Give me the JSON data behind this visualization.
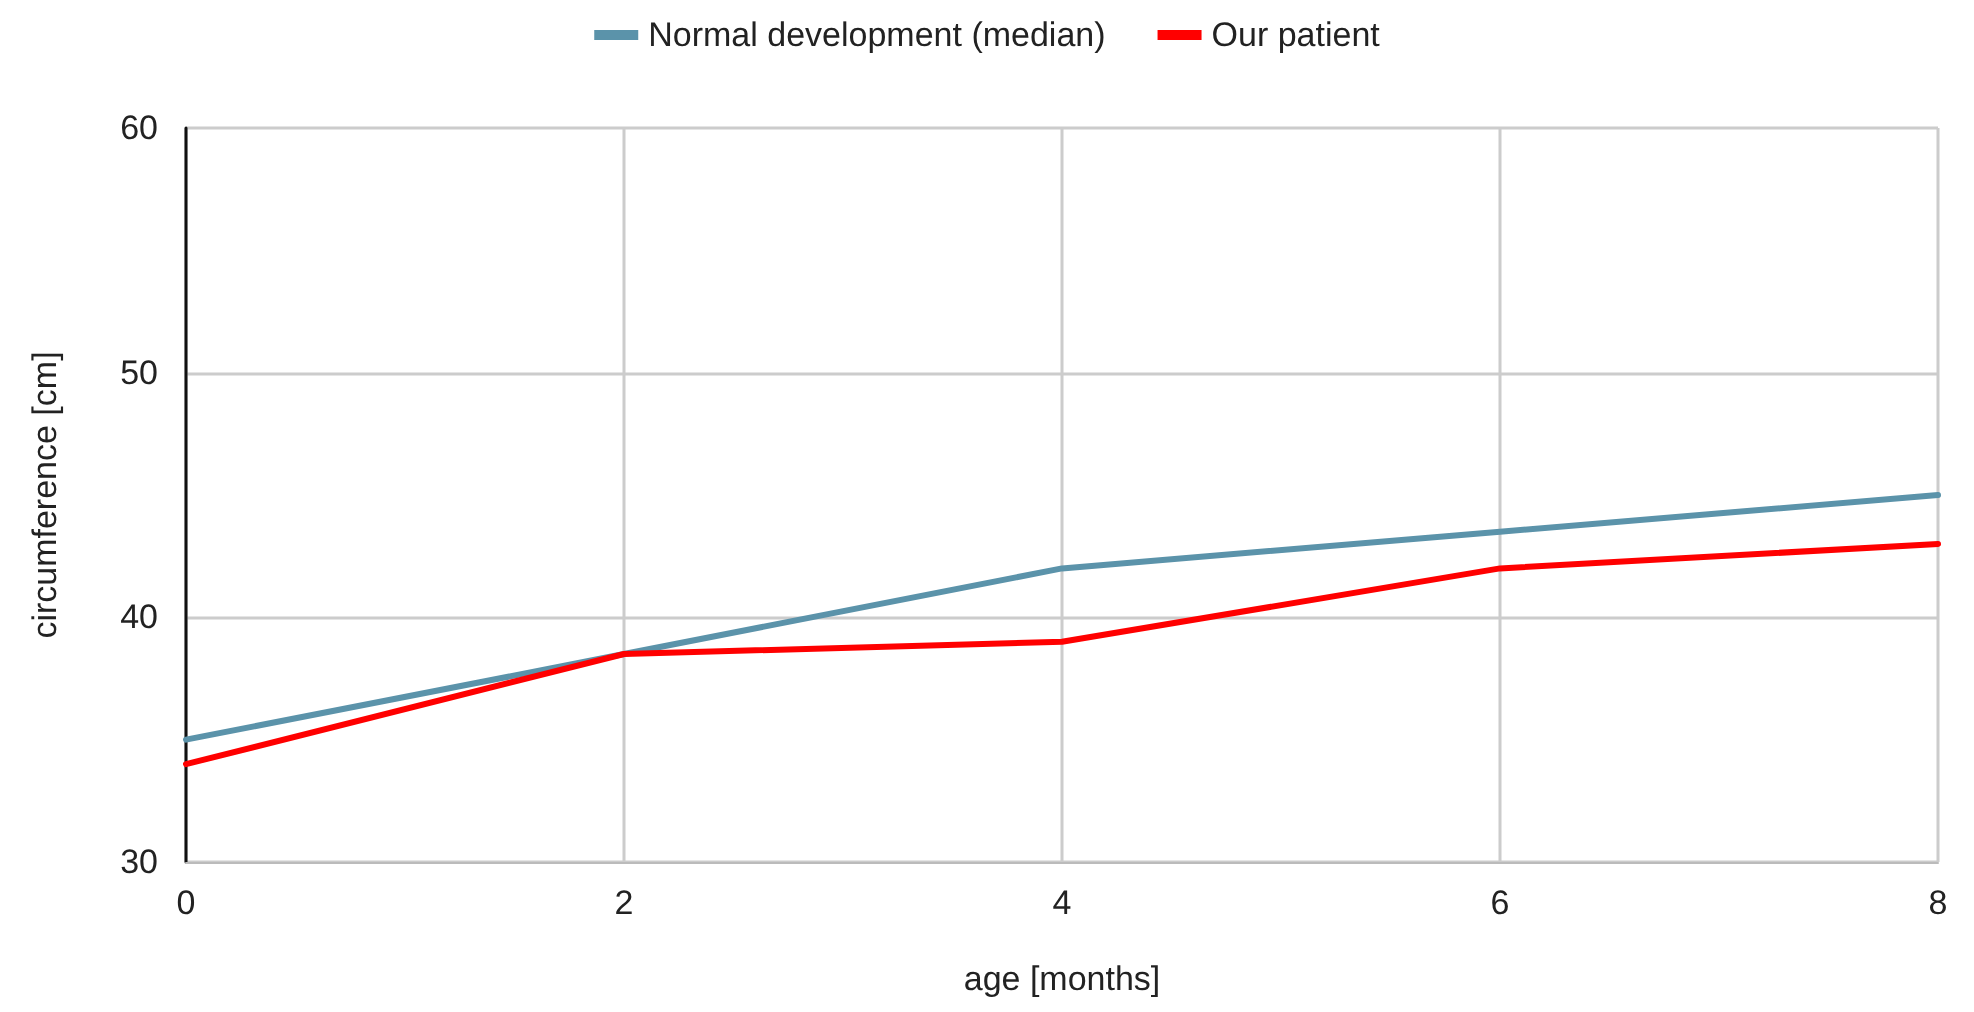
{
  "chart_data": {
    "type": "line",
    "xlabel": "age [months]",
    "ylabel": "circumference [cm]",
    "x": [
      0,
      2,
      4,
      6,
      8
    ],
    "series": [
      {
        "name": "Normal development (median)",
        "color": "#5b93aa",
        "values": [
          35,
          38.5,
          42,
          43.5,
          45
        ]
      },
      {
        "name": "Our patient",
        "color": "#ff0000",
        "values": [
          34,
          38.5,
          39,
          42,
          43
        ]
      }
    ],
    "xlim": [
      0,
      8
    ],
    "xticks": [
      0,
      2,
      4,
      6,
      8
    ],
    "ylim": [
      30,
      60
    ],
    "yticks": [
      30,
      40,
      50,
      60
    ],
    "grid": true,
    "legend": "top",
    "marker": "none",
    "line_style": "solid"
  }
}
